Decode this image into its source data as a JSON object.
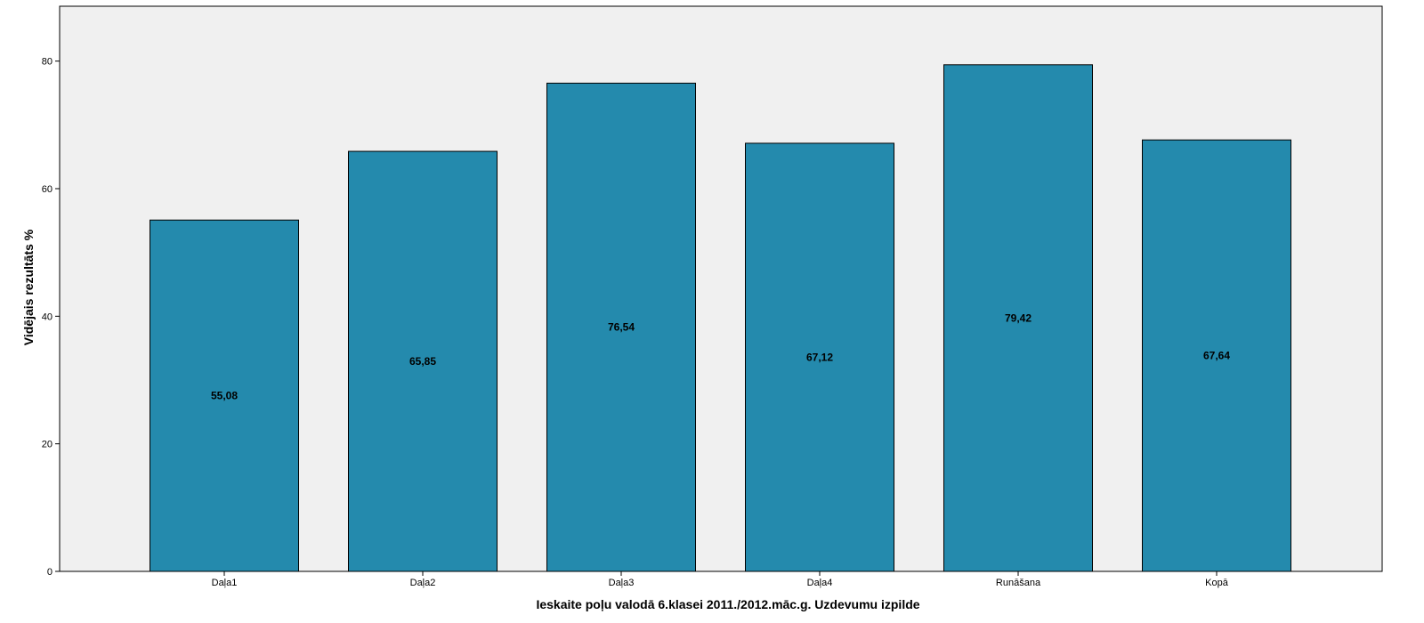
{
  "chart_data": {
    "type": "bar",
    "categories": [
      "Daļa1",
      "Daļa2",
      "Daļa3",
      "Daļa4",
      "Runāšana",
      "Kopā"
    ],
    "values": [
      55.08,
      65.85,
      76.54,
      67.12,
      79.42,
      67.64
    ],
    "value_labels": [
      "55,08",
      "65,85",
      "76,54",
      "67,12",
      "79,42",
      "67,64"
    ],
    "xlabel": "Ieskaite poļu valodā 6.klasei 2011./2012.māc.g. Uzdevumu izpilde",
    "ylabel": "Vidējais rezultāts %",
    "ylim": [
      0,
      88.6
    ],
    "yticks": [
      0,
      20,
      40,
      60,
      80
    ],
    "grid": false,
    "legend": "none",
    "colors": {
      "bar": "#248aad",
      "bar_stroke": "#000000",
      "plot_background": "#f0f0f0"
    }
  }
}
